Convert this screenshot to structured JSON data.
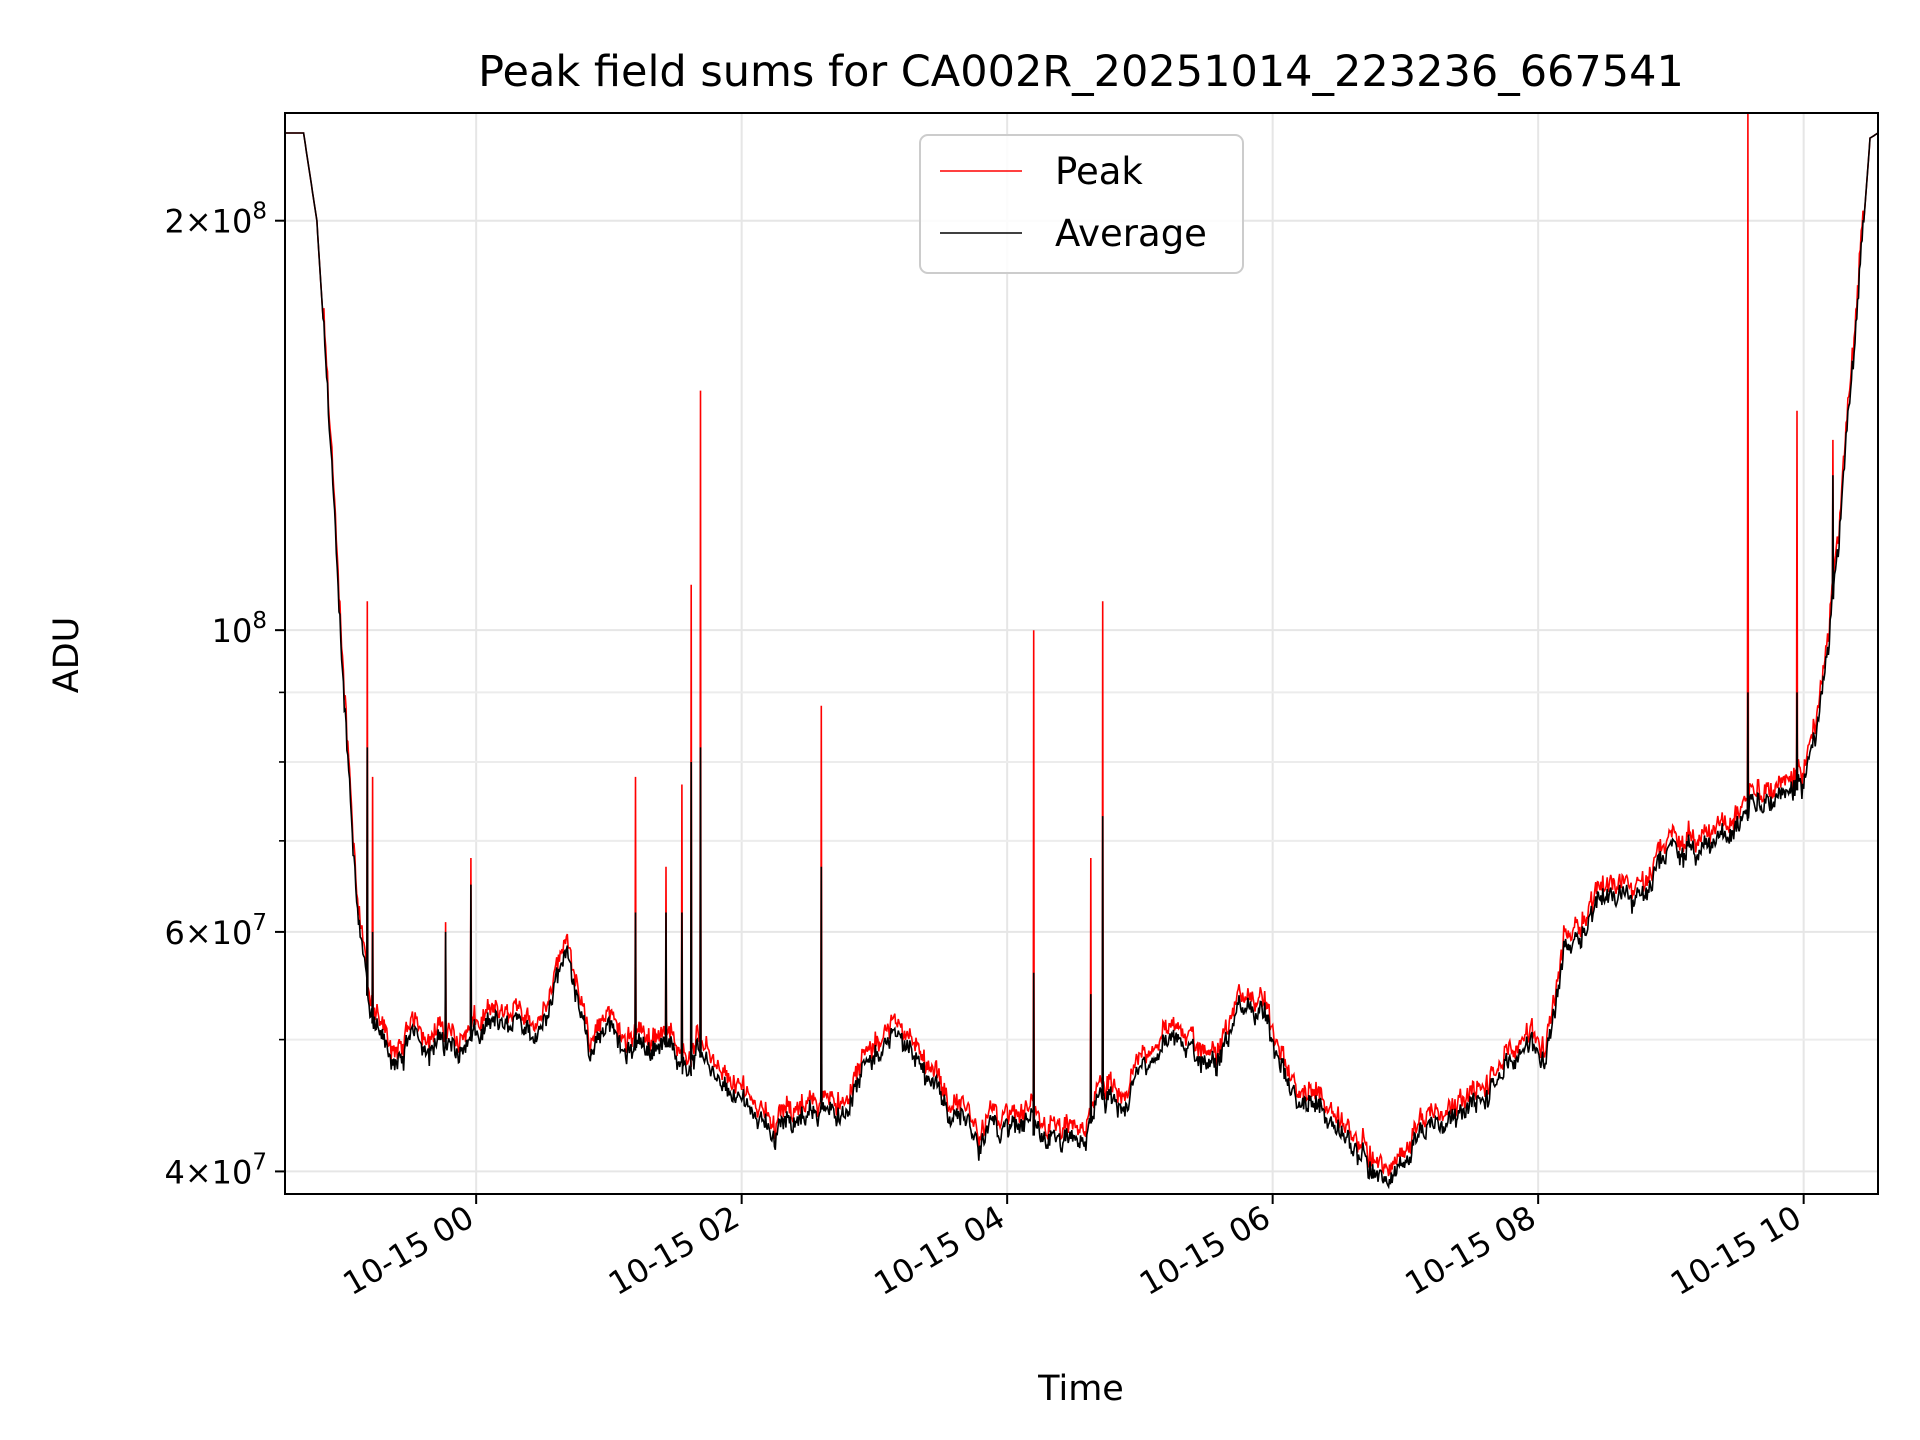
{
  "chart_data": {
    "type": "line",
    "title": "Peak field sums for CA002R_20251014_223236_667541",
    "xlabel": "Time",
    "ylabel": "ADU",
    "yscale": "log",
    "ylim": [
      38500000,
      240000000
    ],
    "xlim_hours": [
      -1.44,
      10.56
    ],
    "grid": true,
    "legend_position": "upper center",
    "x_ticks": [
      {
        "hour": 0,
        "label": "10-15 00"
      },
      {
        "hour": 2,
        "label": "10-15 02"
      },
      {
        "hour": 4,
        "label": "10-15 04"
      },
      {
        "hour": 6,
        "label": "10-15 06"
      },
      {
        "hour": 8,
        "label": "10-15 08"
      },
      {
        "hour": 10,
        "label": "10-15 10"
      }
    ],
    "y_major_ticks": [
      {
        "value": 40000000,
        "base": "4",
        "exp": "7"
      },
      {
        "value": 60000000,
        "base": "6",
        "exp": "7"
      },
      {
        "value": 100000000,
        "base": "",
        "exp": "8"
      },
      {
        "value": 200000000,
        "base": "2",
        "exp": "8"
      }
    ],
    "y_minor_ticks": [
      50000000,
      70000000,
      80000000,
      90000000
    ],
    "series": [
      {
        "name": "Peak",
        "color": "#ff0000"
      },
      {
        "name": "Average",
        "color": "#000000"
      }
    ],
    "baseline": {
      "hours": [
        -1.44,
        -1.3,
        -1.2,
        -1.1,
        -1.0,
        -0.9,
        -0.8,
        -0.7,
        -0.6,
        -0.5,
        -0.4,
        -0.2,
        0.0,
        0.2,
        0.4,
        0.55,
        0.7,
        0.85,
        1.0,
        1.2,
        1.4,
        1.6,
        1.75,
        1.85,
        2.0,
        2.2,
        2.4,
        2.6,
        2.8,
        3.0,
        3.2,
        3.4,
        3.6,
        3.8,
        4.0,
        4.2,
        4.4,
        4.6,
        4.7,
        4.9,
        5.1,
        5.3,
        5.5,
        5.7,
        5.8,
        5.95,
        6.1,
        6.3,
        6.5,
        6.7,
        6.9,
        7.0,
        7.2,
        7.4,
        7.6,
        7.8,
        7.95,
        8.05,
        8.2,
        8.4,
        8.6,
        8.8,
        9.0,
        9.2,
        9.4,
        9.6,
        9.8,
        10.0,
        10.1,
        10.2,
        10.3,
        10.4,
        10.5,
        10.56
      ],
      "average": [
        232000000,
        232000000,
        200000000,
        140000000,
        92000000,
        62000000,
        52000000,
        49000000,
        48000000,
        49500000,
        50000000,
        49500000,
        51000000,
        50000000,
        51000000,
        54000000,
        58000000,
        49000000,
        51000000,
        50000000,
        49500000,
        48500000,
        48500000,
        46000000,
        45000000,
        43000000,
        44000000,
        45000000,
        44000000,
        49500000,
        51000000,
        47000000,
        43000000,
        42500000,
        43000000,
        42500000,
        43000000,
        42500000,
        45500000,
        45000000,
        49500000,
        50000000,
        48000000,
        51000000,
        52500000,
        52000000,
        45500000,
        44000000,
        43000000,
        40500000,
        39000000,
        40000000,
        44000000,
        44500000,
        45000000,
        48000000,
        50000000,
        47000000,
        59000000,
        63000000,
        65000000,
        63000000,
        69000000,
        68000000,
        70000000,
        73000000,
        74000000,
        77000000,
        85000000,
        100000000,
        130000000,
        170000000,
        230000000,
        232000000
      ],
      "peak_ratio": 1.015
    },
    "spikes": [
      {
        "hour": -0.82,
        "peak": 105000000,
        "average": 82000000
      },
      {
        "hour": -0.78,
        "peak": 78000000,
        "average": 60000000
      },
      {
        "hour": -0.23,
        "peak": 61000000,
        "average": 60000000
      },
      {
        "hour": -0.04,
        "peak": 68000000,
        "average": 65000000
      },
      {
        "hour": 1.2,
        "peak": 78000000,
        "average": 62000000
      },
      {
        "hour": 1.43,
        "peak": 67000000,
        "average": 62000000
      },
      {
        "hour": 1.55,
        "peak": 77000000,
        "average": 62000000
      },
      {
        "hour": 1.62,
        "peak": 108000000,
        "average": 80000000
      },
      {
        "hour": 1.69,
        "peak": 150000000,
        "average": 82000000
      },
      {
        "hour": 2.6,
        "peak": 88000000,
        "average": 67000000
      },
      {
        "hour": 4.2,
        "peak": 100000000,
        "average": 56000000
      },
      {
        "hour": 4.63,
        "peak": 68000000,
        "average": 54000000
      },
      {
        "hour": 4.72,
        "peak": 105000000,
        "average": 73000000
      },
      {
        "hour": 9.58,
        "peak": 240000000,
        "average": 90000000
      },
      {
        "hour": 9.95,
        "peak": 145000000,
        "average": 90000000
      },
      {
        "hour": 10.22,
        "peak": 138000000,
        "average": 130000000
      }
    ]
  }
}
